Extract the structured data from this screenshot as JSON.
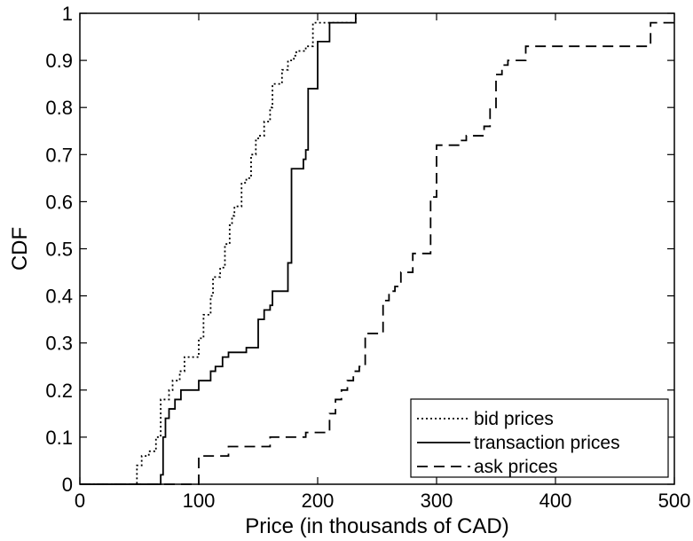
{
  "chart_data": {
    "type": "line",
    "title": "",
    "xlabel": "Price (in thousands of CAD)",
    "ylabel": "CDF",
    "xlim": [
      0,
      500
    ],
    "ylim": [
      0,
      1
    ],
    "xticks": [
      "0",
      "100",
      "200",
      "300",
      "400",
      "500"
    ],
    "yticks": [
      "0",
      "0.1",
      "0.2",
      "0.3",
      "0.4",
      "0.5",
      "0.6",
      "0.7",
      "0.8",
      "0.9",
      "1"
    ],
    "grid": false,
    "legend_position": "bottom-right",
    "series": [
      {
        "name": "bid prices",
        "line_style": "dotted",
        "color": "#000000",
        "x": [
          40,
          48,
          52,
          58,
          64,
          68,
          75,
          78,
          84,
          88,
          100,
          104,
          110,
          112,
          118,
          122,
          126,
          128,
          130,
          136,
          140,
          144,
          148,
          150,
          155,
          160,
          162,
          170,
          175,
          180,
          182,
          184,
          186,
          188,
          190,
          196,
          200,
          210,
          220,
          232
        ],
        "y": [
          0,
          0.04,
          0.06,
          0.07,
          0.1,
          0.18,
          0.2,
          0.22,
          0.24,
          0.27,
          0.31,
          0.36,
          0.4,
          0.44,
          0.46,
          0.51,
          0.55,
          0.57,
          0.59,
          0.64,
          0.65,
          0.7,
          0.73,
          0.74,
          0.77,
          0.8,
          0.85,
          0.88,
          0.9,
          0.91,
          0.92,
          0.92,
          0.92,
          0.92,
          0.93,
          0.98,
          0.98,
          0.98,
          0.98,
          1.0
        ]
      },
      {
        "name": "transaction prices",
        "line_style": "solid",
        "color": "#000000",
        "x": [
          60,
          68,
          70,
          72,
          75,
          80,
          85,
          90,
          100,
          104,
          110,
          114,
          120,
          125,
          130,
          136,
          140,
          150,
          152,
          155,
          160,
          162,
          170,
          175,
          178,
          180,
          182,
          186,
          188,
          190,
          192,
          200,
          210,
          220,
          232
        ],
        "y": [
          0,
          0.02,
          0.1,
          0.14,
          0.16,
          0.18,
          0.2,
          0.2,
          0.22,
          0.22,
          0.24,
          0.25,
          0.27,
          0.28,
          0.28,
          0.28,
          0.29,
          0.35,
          0.35,
          0.37,
          0.38,
          0.41,
          0.41,
          0.47,
          0.67,
          0.67,
          0.67,
          0.67,
          0.69,
          0.71,
          0.84,
          0.94,
          0.98,
          0.98,
          1.0
        ]
      },
      {
        "name": "ask prices",
        "line_style": "dashed",
        "color": "#000000",
        "x": [
          95,
          100,
          120,
          125,
          150,
          160,
          170,
          180,
          190,
          200,
          210,
          215,
          220,
          225,
          230,
          235,
          240,
          250,
          255,
          260,
          265,
          270,
          280,
          290,
          295,
          300,
          310,
          320,
          325,
          330,
          340,
          345,
          350,
          355,
          360,
          375,
          400,
          440,
          460,
          480,
          500
        ],
        "y": [
          0,
          0.06,
          0.06,
          0.08,
          0.08,
          0.1,
          0.1,
          0.1,
          0.11,
          0.11,
          0.15,
          0.18,
          0.2,
          0.22,
          0.24,
          0.25,
          0.32,
          0.32,
          0.39,
          0.41,
          0.42,
          0.45,
          0.49,
          0.49,
          0.61,
          0.72,
          0.72,
          0.73,
          0.74,
          0.74,
          0.76,
          0.8,
          0.87,
          0.89,
          0.9,
          0.93,
          0.93,
          0.93,
          0.93,
          0.98,
          0.98
        ]
      }
    ]
  }
}
